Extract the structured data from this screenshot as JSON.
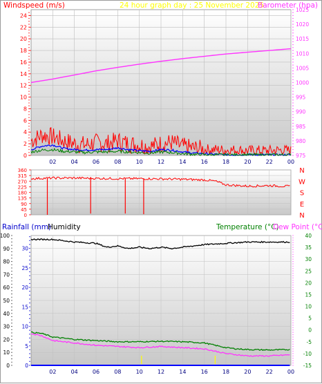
{
  "chart_data": [
    {
      "type": "line",
      "title": "24 hour graph day : 25 November 2025",
      "left_axis_label": "Windspeed (m/s)",
      "right_axis_label": "Barometer (hpa)",
      "x_ticks": [
        "02",
        "04",
        "06",
        "08",
        "10",
        "12",
        "14",
        "16",
        "18",
        "20",
        "22",
        "00"
      ],
      "y_left_ticks": [
        0,
        2,
        4,
        6,
        8,
        10,
        12,
        14,
        16,
        18,
        20,
        22,
        24
      ],
      "y_left_range": [
        0,
        25
      ],
      "y_right_ticks": [
        975,
        980,
        985,
        990,
        995,
        1000,
        1005,
        1010,
        1015,
        1020,
        1025
      ],
      "y_right_range": [
        975,
        1025
      ],
      "grid": true,
      "series": [
        {
          "axis": "right",
          "color": "#ff33ff",
          "x": [
            0,
            2,
            4,
            6,
            8,
            10,
            12,
            14,
            16,
            18,
            20,
            22,
            24
          ],
          "values": [
            1000.0,
            1001.2,
            1002.6,
            1004.0,
            1005.2,
            1006.3,
            1007.3,
            1008.2,
            1009.0,
            1009.8,
            1010.4,
            1011.0,
            1011.6
          ]
        },
        {
          "axis": "left",
          "color": "#ff0000",
          "kind": "gust",
          "x": [
            0,
            1,
            2,
            3,
            4,
            5,
            6,
            7,
            8,
            9,
            10,
            11,
            12,
            13,
            14,
            15,
            16,
            17,
            18,
            19,
            20,
            21,
            22,
            23,
            24
          ],
          "values": [
            2.5,
            3.5,
            3.2,
            2.5,
            2.0,
            1.8,
            2.2,
            2.0,
            2.5,
            2.0,
            1.8,
            1.5,
            2.0,
            2.2,
            1.5,
            1.2,
            1.0,
            1.0,
            0.9,
            0.9,
            0.8,
            0.8,
            0.8,
            0.9,
            0.8
          ]
        },
        {
          "axis": "left",
          "color": "#0000ff",
          "kind": "average",
          "x": [
            0,
            1,
            2,
            3,
            4,
            5,
            6,
            7,
            8,
            9,
            10,
            11,
            12,
            13,
            14,
            15,
            16,
            17,
            18,
            19,
            20,
            21,
            22,
            23,
            24
          ],
          "values": [
            1.0,
            1.6,
            1.8,
            1.2,
            1.0,
            0.9,
            1.0,
            1.0,
            1.3,
            1.0,
            0.8,
            0.7,
            1.0,
            0.9,
            0.6,
            0.4,
            0.3,
            0.2,
            0.1,
            0.1,
            0.1,
            0.1,
            0.1,
            0.1,
            0.1
          ]
        },
        {
          "axis": "left",
          "color": "#008000",
          "kind": "speed",
          "x": [
            0,
            1,
            2,
            3,
            4,
            5,
            6,
            7,
            8,
            9,
            10,
            11,
            12,
            13,
            14,
            15,
            16,
            17,
            18,
            19,
            20,
            21,
            22,
            23,
            24
          ],
          "values": [
            0.5,
            0.8,
            0.9,
            0.6,
            0.5,
            0.4,
            0.5,
            0.5,
            0.6,
            0.5,
            0.4,
            0.3,
            0.5,
            0.4,
            0.2,
            0.1,
            0.0,
            0.0,
            0.0,
            0.0,
            0.0,
            0.0,
            0.0,
            0.0,
            0.0
          ]
        }
      ]
    },
    {
      "type": "line",
      "right_labels": [
        "N",
        "W",
        "S",
        "E",
        "N"
      ],
      "y_left_ticks": [
        0,
        45,
        90,
        135,
        180,
        225,
        270,
        315,
        360
      ],
      "y_range": [
        0,
        360
      ],
      "x_ticks": [
        "02",
        "04",
        "06",
        "08",
        "10",
        "12",
        "14",
        "16",
        "18",
        "20",
        "22",
        "00"
      ],
      "series": [
        {
          "color": "#ff0000",
          "kind": "direction",
          "x": [
            0,
            2,
            4,
            6,
            8,
            10,
            12,
            14,
            15,
            16,
            17,
            18,
            19,
            20,
            21,
            22,
            23,
            24
          ],
          "values": [
            290,
            295,
            295,
            292,
            290,
            290,
            288,
            285,
            282,
            280,
            270,
            240,
            235,
            230,
            232,
            235,
            230,
            228
          ]
        }
      ],
      "spikes": [
        {
          "x": 1.5,
          "value": 0
        },
        {
          "x": 5.5,
          "value": 10
        },
        {
          "x": 8.7,
          "value": 10
        },
        {
          "x": 10.4,
          "value": 5
        }
      ]
    },
    {
      "type": "line",
      "left_axis_label": "Rainfall (mm)",
      "left_axis_label2": "Humidity",
      "right_axis_label": "Temperature (°C)",
      "right_axis_label2": "Dew Point (°C)",
      "x_ticks": [
        "02",
        "04",
        "06",
        "08",
        "10",
        "12",
        "14",
        "16",
        "18",
        "20",
        "22",
        "00"
      ],
      "y_left_ticks": [
        0,
        10,
        20,
        30,
        40,
        50,
        60,
        70,
        80,
        90,
        100
      ],
      "y_left_range": [
        0,
        100
      ],
      "y_rain_ticks": [
        0,
        5,
        10,
        15,
        20,
        25,
        30
      ],
      "y_rain_range": [
        0,
        33.3
      ],
      "y_right_ticks": [
        -15,
        -10,
        -5,
        0,
        5,
        10,
        15,
        20,
        25,
        30,
        35,
        40
      ],
      "y_right_range": [
        -15,
        40
      ],
      "series": [
        {
          "name": "Humidity",
          "axis": "left",
          "color": "#000000",
          "x": [
            0,
            2,
            4,
            6,
            7,
            8,
            9,
            10,
            11,
            12,
            13,
            14,
            16,
            18,
            20,
            22,
            24
          ],
          "values": [
            97,
            97,
            95,
            94,
            91,
            92,
            90,
            91,
            90,
            91,
            90,
            91,
            93,
            94,
            95,
            95,
            95
          ]
        },
        {
          "name": "Temperature",
          "axis": "right",
          "color": "#008000",
          "x": [
            0,
            1,
            2,
            4,
            6,
            8,
            10,
            12,
            14,
            16,
            17,
            18,
            19,
            20,
            22,
            24
          ],
          "values": [
            -1.0,
            -1.5,
            -3.0,
            -4.0,
            -4.5,
            -5.0,
            -5.0,
            -4.8,
            -5.0,
            -5.5,
            -6.5,
            -7.5,
            -8.0,
            -8.3,
            -8.5,
            -8.3
          ]
        },
        {
          "name": "Dew Point",
          "axis": "right",
          "color": "#ff33ff",
          "x": [
            0,
            1,
            2,
            4,
            6,
            8,
            10,
            12,
            14,
            16,
            17,
            18,
            19,
            20,
            22,
            24
          ],
          "values": [
            -1.5,
            -2.5,
            -4.5,
            -5.5,
            -6.5,
            -7.0,
            -7.5,
            -7.0,
            -7.5,
            -8.0,
            -9.0,
            -10.0,
            -10.5,
            -11.0,
            -11.0,
            -10.5
          ]
        },
        {
          "name": "Rainfall",
          "axis": "rain",
          "color": "#0000ff",
          "x": [
            0,
            24
          ],
          "values": [
            0,
            0
          ]
        }
      ],
      "markers": [
        {
          "x": 10.2,
          "color": "#ffff00"
        },
        {
          "x": 17.0,
          "color": "#ffff00"
        }
      ]
    }
  ]
}
